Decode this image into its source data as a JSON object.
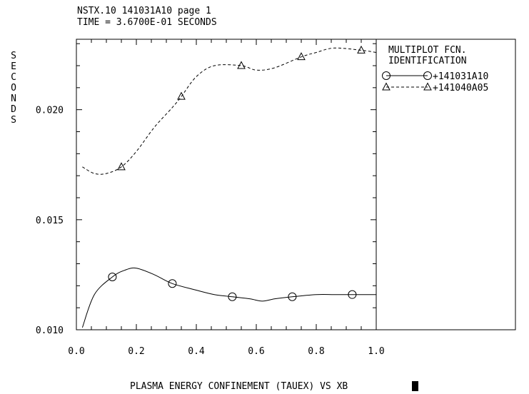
{
  "header": {
    "line1": "NSTX.10 141031A10 page 1",
    "line2": "TIME = 3.6700E-01 SECONDS"
  },
  "chart_data": {
    "type": "line",
    "title": "PLASMA ENERGY CONFINEMENT (TAUEX) VS XB",
    "xlabel": "",
    "ylabel": "SECONDS",
    "xlim": [
      0.0,
      1.0
    ],
    "ylim": [
      0.01,
      0.0232
    ],
    "x_tick_labels": [
      "0.0",
      "0.2",
      "0.4",
      "0.6",
      "0.8",
      "1.0"
    ],
    "y_tick_labels": [
      "0.010",
      "0.015",
      "0.020"
    ],
    "grid": false,
    "legend": {
      "title_line1": "MULTIPLOT FCN.",
      "title_line2": "IDENTIFICATION",
      "position": "right"
    },
    "series": [
      {
        "name": "+141031A10",
        "line_style": "solid",
        "marker": "circle",
        "x": [
          0.02,
          0.06,
          0.12,
          0.16,
          0.2,
          0.26,
          0.32,
          0.4,
          0.46,
          0.52,
          0.58,
          0.62,
          0.66,
          0.72,
          0.8,
          0.86,
          0.92,
          0.96,
          1.0
        ],
        "y": [
          0.0101,
          0.0116,
          0.0124,
          0.0127,
          0.0128,
          0.0125,
          0.0121,
          0.0118,
          0.0116,
          0.0115,
          0.0114,
          0.0113,
          0.0114,
          0.0115,
          0.0116,
          0.0116,
          0.0116,
          0.0116,
          0.0116
        ],
        "marker_x": [
          0.12,
          0.32,
          0.52,
          0.72,
          0.92
        ],
        "marker_y": [
          0.0124,
          0.0121,
          0.0115,
          0.0115,
          0.0116
        ]
      },
      {
        "name": "+141040A05",
        "line_style": "dashed",
        "marker": "triangle",
        "x": [
          0.02,
          0.06,
          0.1,
          0.15,
          0.2,
          0.26,
          0.32,
          0.35,
          0.4,
          0.46,
          0.55,
          0.6,
          0.66,
          0.75,
          0.8,
          0.86,
          0.95,
          1.0
        ],
        "y": [
          0.0174,
          0.0171,
          0.0171,
          0.0174,
          0.0181,
          0.0192,
          0.0201,
          0.0206,
          0.0215,
          0.022,
          0.022,
          0.0218,
          0.0219,
          0.0224,
          0.0226,
          0.0228,
          0.0227,
          0.0226
        ],
        "marker_x": [
          0.15,
          0.35,
          0.55,
          0.75,
          0.95
        ],
        "marker_y": [
          0.0174,
          0.0206,
          0.022,
          0.0224,
          0.0227
        ]
      }
    ]
  }
}
